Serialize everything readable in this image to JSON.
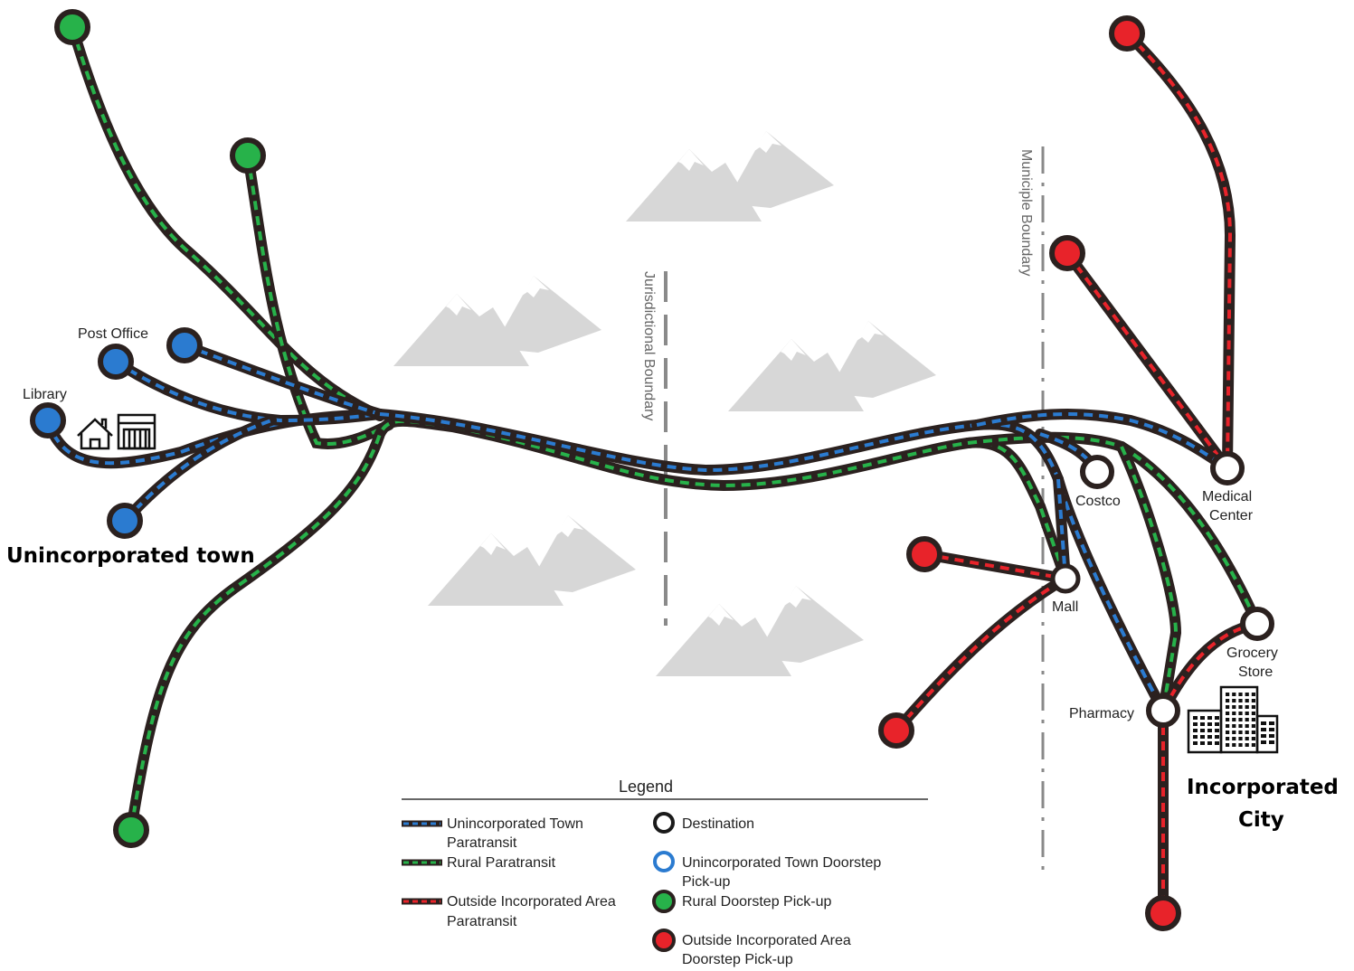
{
  "labels": {
    "post_office": "Post Office",
    "library": "Library",
    "costco": "Costco",
    "medical_center_1": "Medical",
    "medical_center_2": "Center",
    "mall": "Mall",
    "grocery_1": "Grocery",
    "grocery_2": "Store",
    "pharmacy": "Pharmacy"
  },
  "regions": {
    "unincorporated_town": "Unincorporated town",
    "incorporated_city_1": "Incorporated",
    "incorporated_city_2": "City"
  },
  "boundaries": {
    "jurisdictional": "Jurisdictional Boundary",
    "municipal": "Municiple Boundary"
  },
  "legend": {
    "title": "Legend",
    "unincorporated_paratransit_1": "Unincorporated Town",
    "unincorporated_paratransit_2": "Paratransit",
    "rural_paratransit": "Rural Paratransit",
    "outside_paratransit_1": "Outside Incorporated Area",
    "outside_paratransit_2": "Paratransit",
    "destination": "Destination",
    "unincorporated_doorstep_1": "Unincorporated Town Doorstep",
    "unincorporated_doorstep_2": "Pick-up",
    "rural_doorstep": "Rural Doorstep Pick-up",
    "outside_doorstep_1": "Outside Incorporated Area",
    "outside_doorstep_2": "Doorstep Pick-up"
  },
  "colors": {
    "route_base": "#2b211f",
    "unincorporated": "#2b7bd0",
    "rural": "#27b24a",
    "outside": "#e8232a",
    "destination_fill": "#ffffff",
    "mountain": "#d5d5d5",
    "boundary": "#8a8a8a"
  },
  "icons": [
    "house-icon",
    "storefront-icon",
    "city-buildings-icon"
  ]
}
